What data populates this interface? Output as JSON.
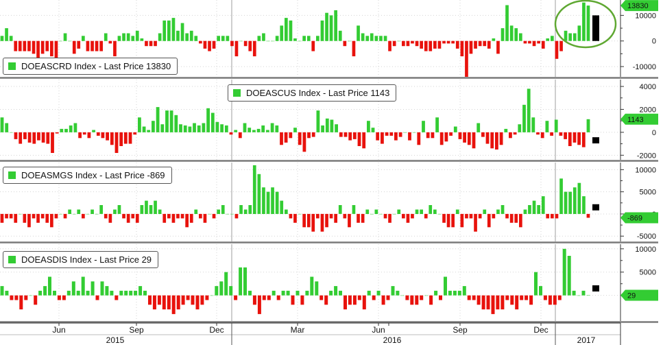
{
  "chart_data": [
    {
      "type": "bar",
      "legend": "DOEASCRD Index - Last Price 13830",
      "ylim": [
        -14000,
        16000
      ],
      "y_ticks": [
        -10000,
        0,
        10000
      ],
      "y_tick_labels": [
        "-10000",
        "0",
        "10000"
      ],
      "last_value_label": "13830",
      "values": [
        2000,
        5000,
        2000,
        -4000,
        -4000,
        -4000,
        -4000,
        -5000,
        -7000,
        -5000,
        -4000,
        -6000,
        -7000,
        0,
        3000,
        0,
        -5000,
        -3000,
        2000,
        -4000,
        -4000,
        -4000,
        -4000,
        3000,
        -1000,
        -6000,
        2000,
        3000,
        3000,
        2000,
        4000,
        1000,
        -2000,
        -2000,
        -2000,
        3000,
        8000,
        8000,
        9000,
        4000,
        7000,
        3000,
        4000,
        2000,
        -1000,
        -3000,
        -4000,
        -3000,
        2000,
        2000,
        2000,
        -2000,
        -6000,
        0,
        -2000,
        -4000,
        -6000,
        2000,
        3000,
        0,
        0,
        2000,
        6000,
        9000,
        8000,
        1000,
        0,
        2000,
        2000,
        -4000,
        2000,
        8000,
        11000,
        10000,
        12000,
        4000,
        -2000,
        0,
        -6000,
        6000,
        3000,
        2000,
        3000,
        2000,
        2000,
        2000,
        -4000,
        -2000,
        0,
        -2000,
        -2000,
        -1000,
        -2000,
        -3000,
        -4000,
        -4000,
        -3000,
        -3000,
        -1000,
        -1000,
        -1000,
        -3000,
        -6000,
        -14000,
        -5000,
        -3000,
        -2000,
        -2000,
        -3000,
        1000,
        -5000,
        5000,
        14000,
        6000,
        5000,
        3000,
        -1000,
        -1000,
        -2000,
        -1000,
        -3000,
        1000,
        2000,
        -7000,
        -4000,
        4000,
        3000,
        3000,
        6000,
        15000,
        13830
      ],
      "forecast_value": 10000,
      "callout": "circle around latest bars"
    },
    {
      "type": "bar",
      "legend": "DOEASCUS Index - Last Price 1143",
      "ylim": [
        -2400,
        4600
      ],
      "y_ticks": [
        -2000,
        0,
        2000,
        4000
      ],
      "y_tick_labels": [
        "-2000",
        "0",
        "2000",
        "4000"
      ],
      "last_value_label": "1143",
      "values": [
        1300,
        800,
        0,
        -600,
        -1000,
        -600,
        -900,
        -1000,
        -700,
        -900,
        -1000,
        -1800,
        -100,
        300,
        300,
        600,
        800,
        -500,
        -200,
        -500,
        200,
        -300,
        -500,
        -700,
        -1100,
        -1800,
        -1200,
        -1000,
        -1000,
        -200,
        1300,
        500,
        200,
        1000,
        2200,
        700,
        1900,
        1900,
        1500,
        700,
        600,
        500,
        800,
        600,
        800,
        2100,
        1700,
        900,
        700,
        600,
        -200,
        200,
        -500,
        800,
        400,
        200,
        300,
        600,
        200,
        800,
        600,
        -1100,
        -900,
        -500,
        400,
        -1100,
        -1700,
        -500,
        -400,
        1900,
        600,
        1200,
        1100,
        700,
        -400,
        -400,
        -700,
        -600,
        -1200,
        -1400,
        1000,
        400,
        -700,
        -1000,
        -300,
        -300,
        -700,
        -400,
        0,
        -700,
        0,
        -1100,
        1000,
        -500,
        -500,
        1300,
        -1100,
        -800,
        -300,
        500,
        -600,
        -900,
        -1100,
        -1400,
        800,
        -400,
        -1000,
        -1400,
        -1500,
        -1100,
        300,
        -500,
        -200,
        700,
        2400,
        3800,
        1300,
        -200,
        -500,
        1000,
        -300,
        1100,
        -300,
        -600,
        -1200,
        -900,
        -1100,
        -1300,
        1143
      ],
      "forecast_value": -700
    },
    {
      "type": "bar",
      "legend": "DOEASMGS Index - Last Price -869",
      "ylim": [
        -6200,
        11600
      ],
      "y_ticks": [
        -5000,
        0,
        5000,
        10000
      ],
      "y_tick_labels": [
        "-5000",
        "0",
        "5000",
        "10000"
      ],
      "last_value_label": "-869",
      "values": [
        -2000,
        -1000,
        -1000,
        -2000,
        0,
        -2000,
        -3000,
        -1000,
        -2000,
        -1000,
        -2000,
        -3000,
        -1000,
        0,
        -1000,
        1000,
        0,
        1000,
        -1000,
        0,
        1000,
        0,
        2000,
        -1000,
        -2000,
        1000,
        2000,
        -1000,
        -2000,
        -1000,
        -2000,
        2000,
        3000,
        2000,
        3000,
        1000,
        -2000,
        -1000,
        -2000,
        -1000,
        -1000,
        -3000,
        -2000,
        1000,
        -1000,
        -2000,
        0,
        -1000,
        1000,
        2000,
        0,
        0,
        -1000,
        2000,
        1000,
        2000,
        11000,
        9000,
        6000,
        5000,
        6000,
        5000,
        3000,
        1000,
        -1000,
        -2000,
        0,
        -3000,
        -3000,
        -4000,
        -1000,
        -4000,
        -3000,
        -1000,
        -2000,
        2000,
        -1000,
        -3000,
        2000,
        -2000,
        -2000,
        1000,
        0,
        1000,
        0,
        -1000,
        -2000,
        0,
        1000,
        -1000,
        -2000,
        -1000,
        1000,
        1000,
        -1000,
        2000,
        1000,
        0,
        -2000,
        -3000,
        -3000,
        1000,
        -3000,
        -1000,
        -1000,
        -4000,
        -1000,
        1000,
        -3000,
        -1000,
        1000,
        2000,
        -1000,
        -2000,
        -2000,
        -3000,
        1000,
        2000,
        3000,
        2000,
        4000,
        -1000,
        -1000,
        -1000,
        8000,
        5000,
        5000,
        6000,
        7000,
        4000,
        -869
      ],
      "forecast_value": 1500
    },
    {
      "type": "bar",
      "legend": "DOEASDIS Index - Last Price 29",
      "ylim": [
        -5500,
        11000
      ],
      "y_ticks": [
        0,
        5000,
        10000
      ],
      "y_tick_labels": [
        "0",
        "5000",
        "10000"
      ],
      "last_value_label": "29",
      "values": [
        2000,
        1000,
        -1000,
        -1000,
        -3000,
        -1000,
        0,
        -2000,
        1000,
        2000,
        4000,
        1000,
        -1000,
        -1000,
        1000,
        3000,
        1000,
        4000,
        1000,
        3000,
        -1000,
        3000,
        2000,
        1000,
        -1000,
        1000,
        1000,
        1000,
        1000,
        2000,
        1000,
        -2000,
        -3000,
        -2000,
        -3000,
        -3000,
        -4000,
        -3000,
        -2000,
        -1000,
        -2000,
        -3000,
        -2000,
        -1000,
        0,
        2000,
        3000,
        5000,
        2000,
        -1000,
        6000,
        6000,
        1000,
        -2000,
        -4000,
        -1000,
        -1000,
        1000,
        -1000,
        1000,
        1000,
        -2000,
        1000,
        -2000,
        1000,
        4000,
        3000,
        -1000,
        -2000,
        1000,
        2000,
        1000,
        -3000,
        -2000,
        -2000,
        -1000,
        -3000,
        1000,
        -1000,
        1000,
        -2000,
        -1000,
        2000,
        1000,
        0,
        -1000,
        -2000,
        -2000,
        -1000,
        0,
        -2000,
        1000,
        -1000,
        4000,
        1000,
        1000,
        1000,
        2000,
        -1000,
        -1000,
        -2000,
        -3000,
        -3000,
        -4000,
        -3000,
        -3000,
        -1000,
        -2000,
        -3000,
        -1000,
        -1000,
        -2000,
        5000,
        2000,
        -1000,
        -2000,
        -2000,
        -1000,
        10000,
        8500,
        1000,
        0,
        1000,
        29
      ],
      "forecast_value": 1500
    }
  ],
  "x_axis": {
    "month_labels": [
      "Jun",
      "Sep",
      "Dec",
      "Mar",
      "Jun",
      "Sep",
      "Dec"
    ],
    "year_labels": [
      "2015",
      "2016",
      "2017"
    ]
  },
  "colors": {
    "positive": "#33cc33",
    "negative": "#e8120c",
    "forecast": "#000000",
    "callout_circle": "#5fa832",
    "axis_strip": "#2db92d",
    "grid": "#d3d3d3"
  }
}
